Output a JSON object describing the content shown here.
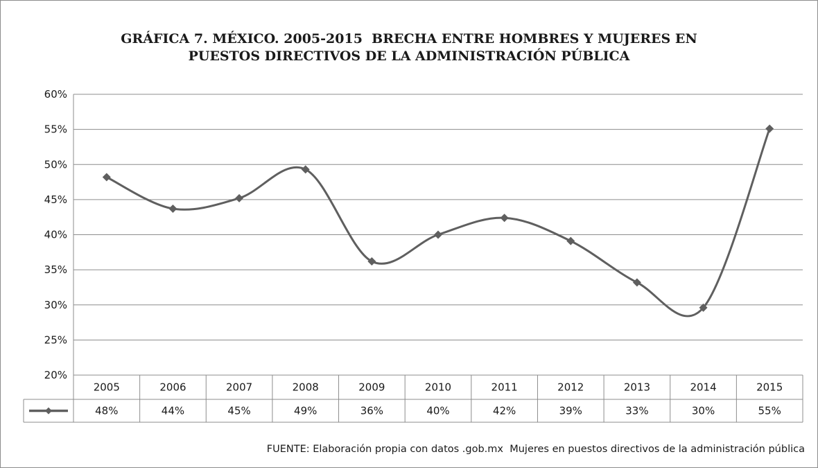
{
  "chart_data": {
    "type": "line",
    "title_line1": "GRÁFICA 7. MÉXICO. 2005-2015  BRECHA ENTRE HOMBRES Y MUJERES EN",
    "title_line2": "PUESTOS DIRECTIVOS DE LA ADMINISTRACIÓN PÚBLICA",
    "categories": [
      "2005",
      "2006",
      "2007",
      "2008",
      "2009",
      "2010",
      "2011",
      "2012",
      "2013",
      "2014",
      "2015"
    ],
    "values": [
      0.482,
      0.437,
      0.452,
      0.493,
      0.362,
      0.4,
      0.424,
      0.391,
      0.332,
      0.296,
      0.551
    ],
    "value_labels": [
      "48%",
      "44%",
      "45%",
      "49%",
      "36%",
      "40%",
      "42%",
      "39%",
      "33%",
      "30%",
      "55%"
    ],
    "ylim": [
      0.2,
      0.6
    ],
    "yticks": [
      "20%",
      "25%",
      "30%",
      "35%",
      "40%",
      "45%",
      "50%",
      "55%",
      "60%"
    ],
    "ytick_values": [
      0.2,
      0.25,
      0.3,
      0.35,
      0.4,
      0.45,
      0.5,
      0.55,
      0.6
    ],
    "grid": true,
    "legend": "data-table",
    "line_color": "#5f5f5f",
    "source": "FUENTE: Elaboración propia con datos .gob.mx  Mujeres en puestos directivos de la administración pública"
  }
}
